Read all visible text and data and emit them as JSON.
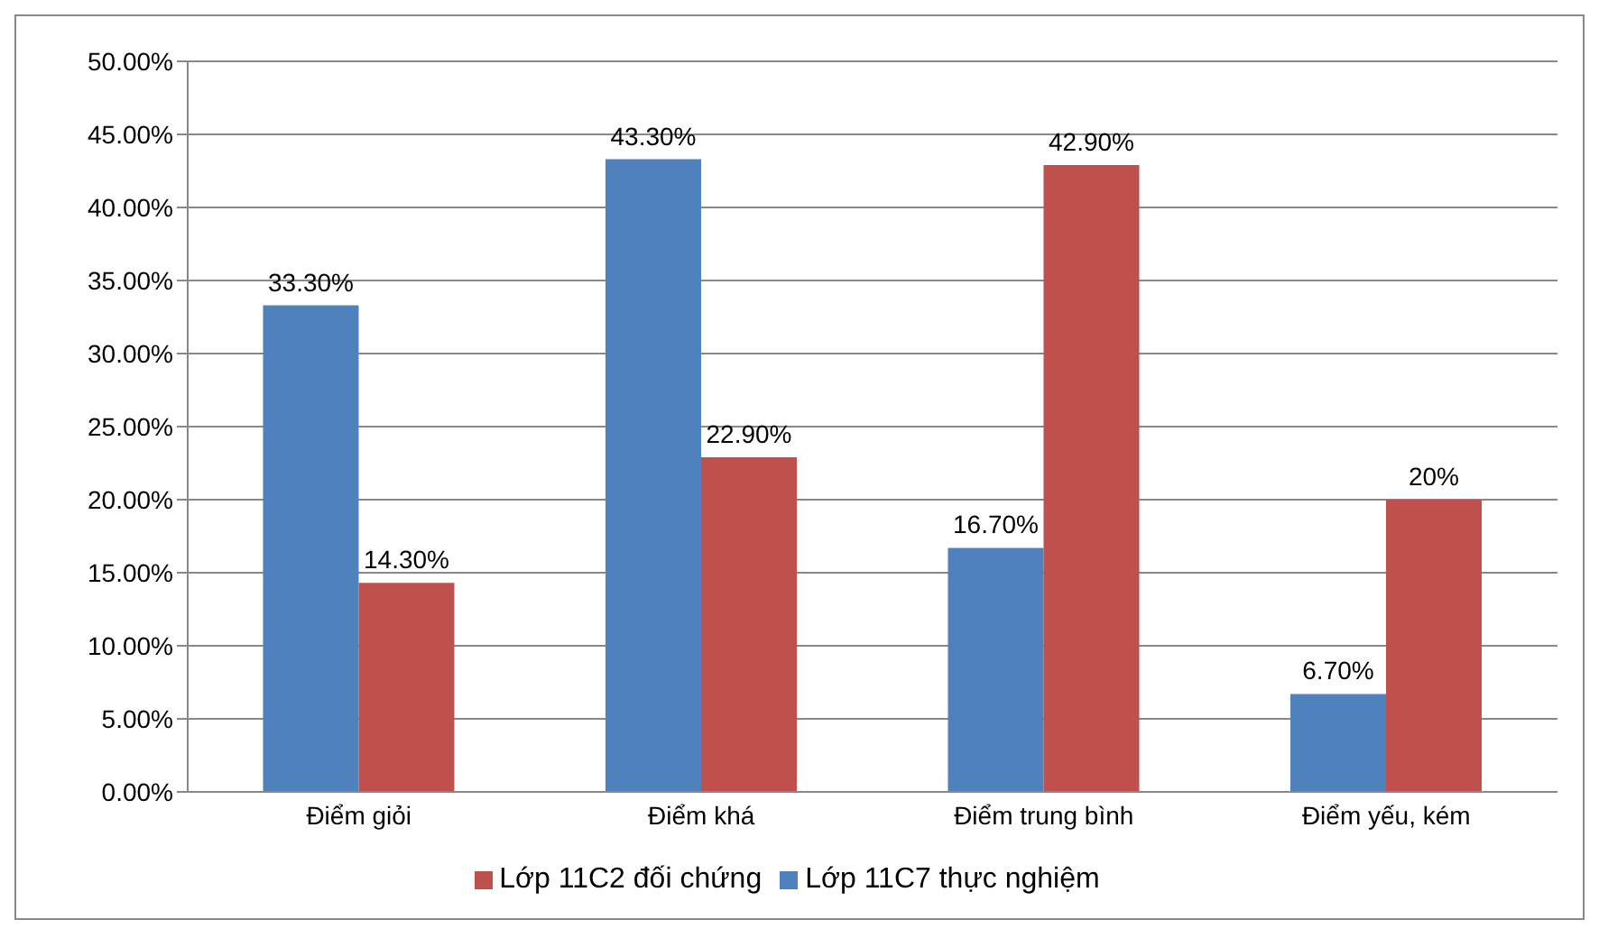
{
  "chart_data": {
    "type": "bar",
    "categories": [
      "Điểm giỏi",
      "Điểm khá",
      "Điểm trung bình",
      "Điểm yếu, kém"
    ],
    "series": [
      {
        "name": "Lớp 11C7 thực nghiệm",
        "color": "#4f81bd",
        "values": [
          33.3,
          43.3,
          16.7,
          6.7
        ],
        "value_labels": [
          "33.30%",
          "43.30%",
          "16.70%",
          "6.70%"
        ]
      },
      {
        "name": "Lớp 11C2  đối chứng",
        "color": "#c0504d",
        "values": [
          14.3,
          22.9,
          42.9,
          20
        ],
        "value_labels": [
          "14.30%",
          "22.90%",
          "42.90%",
          "20%"
        ]
      }
    ],
    "ylim": [
      0,
      50
    ],
    "yticks": [
      {
        "value": 0,
        "label": "0.00%"
      },
      {
        "value": 5,
        "label": "5.00%"
      },
      {
        "value": 10,
        "label": "10.00%"
      },
      {
        "value": 15,
        "label": "15.00%"
      },
      {
        "value": 20,
        "label": "20.00%"
      },
      {
        "value": 25,
        "label": "25.00%"
      },
      {
        "value": 30,
        "label": "30.00%"
      },
      {
        "value": 35,
        "label": "35.00%"
      },
      {
        "value": 40,
        "label": "40.00%"
      },
      {
        "value": 45,
        "label": "45.00%"
      },
      {
        "value": 50,
        "label": "50.00%"
      }
    ],
    "grid": "y",
    "legend": "bottom"
  }
}
